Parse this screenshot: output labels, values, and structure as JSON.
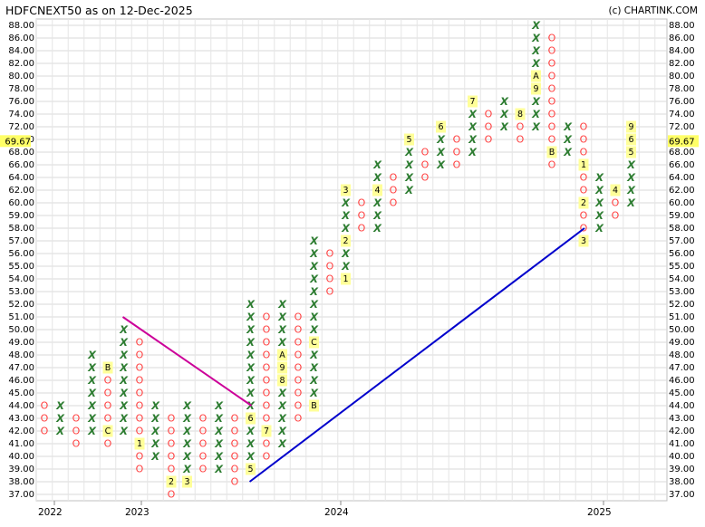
{
  "header": {
    "title": "HDFCNEXT50 as on 12-Dec-2025",
    "credit": "(c) CHARTINK.COM"
  },
  "chart_data": {
    "type": "point-and-figure",
    "price_levels": [
      37,
      38,
      39,
      40,
      41,
      42,
      43,
      44,
      45,
      46,
      47,
      48,
      49,
      50,
      51,
      52,
      53,
      54,
      55,
      56,
      57,
      58,
      59,
      60,
      62,
      64,
      66,
      68,
      70,
      72,
      74,
      76,
      78,
      80,
      82,
      84,
      86,
      88
    ],
    "current_price": "69.67",
    "x_axis_years": [
      "2022",
      "2023",
      "2024",
      "2025"
    ],
    "columns": [
      {
        "type": "O",
        "from": 42,
        "to": 44,
        "months": {
          "41": "A"
        }
      },
      {
        "type": "X",
        "from": 42,
        "to": 44
      },
      {
        "type": "O",
        "from": 41,
        "to": 43
      },
      {
        "type": "X",
        "from": 42,
        "to": 48
      },
      {
        "type": "O",
        "from": 41,
        "to": 47,
        "months": {
          "47": "B",
          "42": "C"
        }
      },
      {
        "type": "X",
        "from": 42,
        "to": 50
      },
      {
        "type": "O",
        "from": 39,
        "to": 49,
        "months": {
          "41": "1"
        }
      },
      {
        "type": "X",
        "from": 40,
        "to": 44
      },
      {
        "type": "O",
        "from": 37,
        "to": 43,
        "months": {
          "38": "2"
        }
      },
      {
        "type": "X",
        "from": 38,
        "to": 44,
        "months": {
          "38": "3"
        }
      },
      {
        "type": "O",
        "from": 39,
        "to": 43
      },
      {
        "type": "X",
        "from": 39,
        "to": 44
      },
      {
        "type": "O",
        "from": 38,
        "to": 43
      },
      {
        "type": "X",
        "from": 39,
        "to": 52,
        "months": {
          "39": "5",
          "43": "6"
        }
      },
      {
        "type": "O",
        "from": 40,
        "to": 51,
        "months": {
          "42": "7"
        }
      },
      {
        "type": "X",
        "from": 41,
        "to": 52,
        "months": {
          "48": "A",
          "47": "9",
          "46": "8"
        }
      },
      {
        "type": "O",
        "from": 43,
        "to": 51
      },
      {
        "type": "X",
        "from": 44,
        "to": 57,
        "months": {
          "49": "C",
          "44": "B"
        }
      },
      {
        "type": "O",
        "from": 53,
        "to": 56
      },
      {
        "type": "X",
        "from": 54,
        "to": 62,
        "months": {
          "62": "3",
          "57": "2",
          "54": "1"
        }
      },
      {
        "type": "O",
        "from": 58,
        "to": 60
      },
      {
        "type": "X",
        "from": 58,
        "to": 66,
        "months": {
          "62": "4"
        }
      },
      {
        "type": "O",
        "from": 60,
        "to": 64
      },
      {
        "type": "X",
        "from": 62,
        "to": 70,
        "months": {
          "70": "5"
        }
      },
      {
        "type": "O",
        "from": 64,
        "to": 68
      },
      {
        "type": "X",
        "from": 66,
        "to": 72,
        "months": {
          "72": "6"
        }
      },
      {
        "type": "O",
        "from": 66,
        "to": 70
      },
      {
        "type": "X",
        "from": 68,
        "to": 76,
        "months": {
          "76": "7"
        }
      },
      {
        "type": "O",
        "from": 70,
        "to": 74
      },
      {
        "type": "X",
        "from": 72,
        "to": 76
      },
      {
        "type": "O",
        "from": 70,
        "to": 74,
        "months": {
          "74": "8"
        }
      },
      {
        "type": "X",
        "from": 72,
        "to": 88,
        "months": {
          "80": "A",
          "78": "9"
        }
      },
      {
        "type": "O",
        "from": 66,
        "to": 86,
        "months": {
          "68": "B"
        }
      },
      {
        "type": "X",
        "from": 68,
        "to": 72,
        "months": {
          "74": "C"
        }
      },
      {
        "type": "O",
        "from": 57,
        "to": 72,
        "months": {
          "66": "1",
          "60": "2",
          "57": "3"
        }
      },
      {
        "type": "X",
        "from": 58,
        "to": 64
      },
      {
        "type": "O",
        "from": 59,
        "to": 62,
        "months": {
          "62": "4"
        }
      },
      {
        "type": "X",
        "from": 60,
        "to": 72,
        "months": {
          "72": "9",
          "70": "6",
          "68": "5"
        }
      }
    ],
    "trendlines": [
      {
        "color": "#cc0099",
        "from": {
          "column": 5,
          "price": 51
        },
        "to": {
          "column": 13,
          "price": 44
        }
      },
      {
        "color": "#0000cc",
        "from": {
          "column": 13,
          "price": 38
        },
        "to": {
          "column": 34,
          "price": 58
        }
      }
    ],
    "colors": {
      "x_mark": "#2e7d32",
      "o_mark": "#ff4040",
      "month_tag_bg": "#ffff99",
      "grid": "#d9d9d9",
      "price_highlight": "#ffff66"
    }
  }
}
